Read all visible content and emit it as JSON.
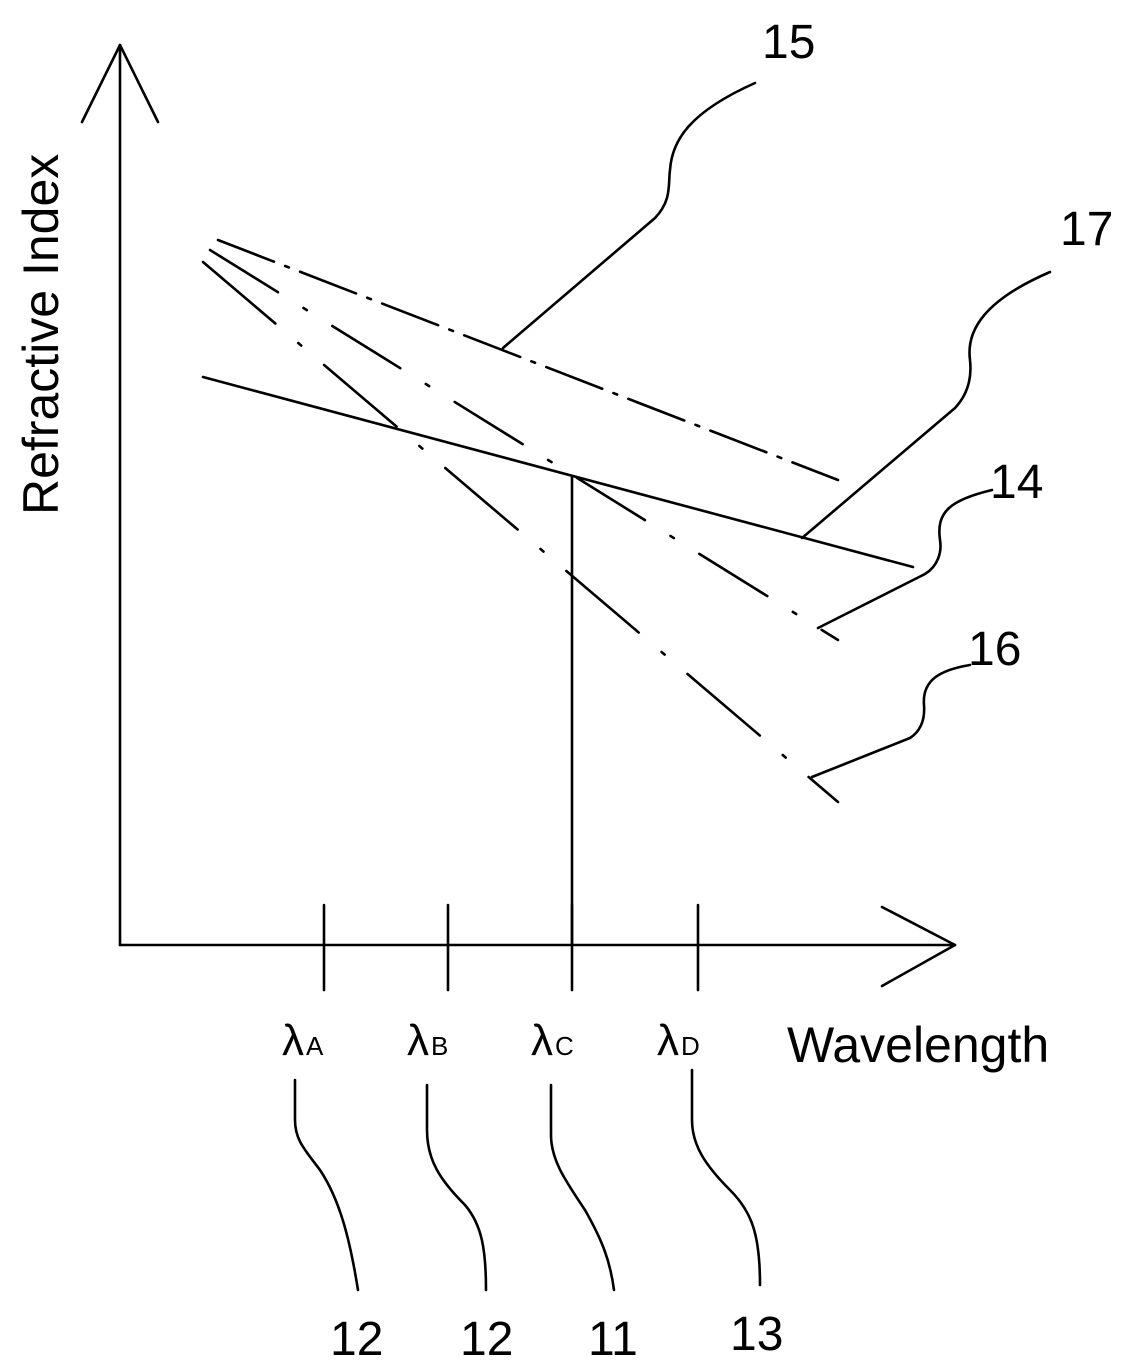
{
  "axes": {
    "y_label": "Refractive Index",
    "x_label": "Wavelength"
  },
  "wavelength_marks": [
    {
      "symbol": "λ",
      "sub": "A"
    },
    {
      "symbol": "λ",
      "sub": "B"
    },
    {
      "symbol": "λ",
      "sub": "C"
    },
    {
      "symbol": "λ",
      "sub": "D"
    }
  ],
  "reference_numerals": {
    "r15": "15",
    "r17": "17",
    "r14": "14",
    "r16": "16",
    "r12a": "12",
    "r12b": "12",
    "r11": "11",
    "r13": "13"
  },
  "line_styles": {
    "curve_15": "dash-dot",
    "curve_17": "solid",
    "curve_14": "dash-dot",
    "curve_16": "dash-dot"
  }
}
